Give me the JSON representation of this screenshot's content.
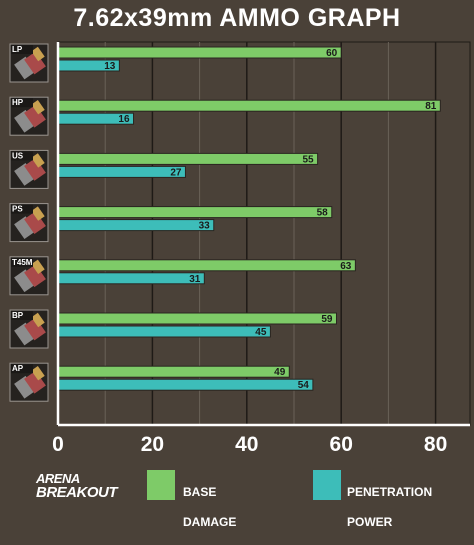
{
  "chart_data": {
    "type": "bar",
    "orientation": "horizontal",
    "title": "7.62x39mm AMMO GRAPH",
    "categories": [
      "LP",
      "HP",
      "US",
      "PS",
      "T45M",
      "BP",
      "AP"
    ],
    "series": [
      {
        "name": "BASE DAMAGE",
        "values": [
          60,
          81,
          55,
          58,
          63,
          59,
          49
        ],
        "color": "#7ecb68"
      },
      {
        "name": "PENETRATION POWER",
        "values": [
          13,
          16,
          27,
          33,
          31,
          45,
          54
        ],
        "color": "#3dbdb9"
      }
    ],
    "xlim": [
      0,
      88
    ],
    "xticks": [
      0,
      20,
      40,
      60,
      80
    ],
    "grid": true,
    "legend_position": "bottom"
  },
  "legend": {
    "brand_line1": "ARENA",
    "brand_line2": "BREAKOUT",
    "base_line1": "BASE",
    "base_line2": "DAMAGE",
    "pen_line1": "PENETRATION",
    "pen_line2": "POWER"
  },
  "icon_name": "rifle-cartridge-icon"
}
